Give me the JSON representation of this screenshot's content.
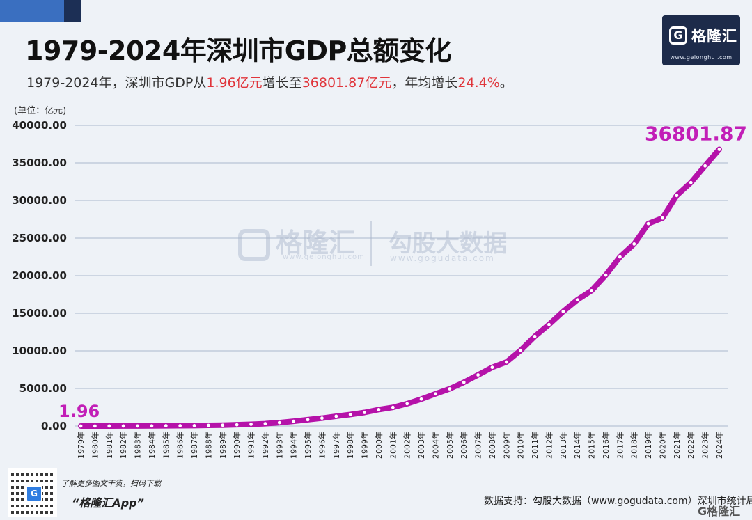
{
  "header": {
    "title": "1979-2024年深圳市GDP总额变化",
    "subtitle_parts": [
      "1979-2024年，深圳市GDP从",
      "1.96亿元",
      "增长至",
      "36801.87亿元",
      "，年均增长",
      "24.4%",
      "。"
    ]
  },
  "logo": {
    "name": "格隆汇",
    "mark": "G",
    "url": "www.gelonghui.com"
  },
  "watermark": {
    "brand1": "格隆汇",
    "brand1_url": "www.gelonghui.com",
    "brand2": "勾股大数据",
    "brand2_url": "www.gogudata.com"
  },
  "footer": {
    "qr_mark": "G",
    "tip": "了解更多图文干货，扫码下载",
    "app": "“格隆汇App”",
    "source": "数据支持：勾股大数据（www.gogudata.com）深圳市统计局",
    "corner_logo": "G格隆汇"
  },
  "colors": {
    "line": "#b512a9",
    "label": "#c21fb7",
    "accent_red": "#e0353b",
    "grid": "#aab8cc"
  },
  "chart_data": {
    "type": "line",
    "unit_label": "(单位：亿元)",
    "ylim": [
      0,
      40000
    ],
    "yticks": [
      "0.00",
      "5000.00",
      "10000.00",
      "15000.00",
      "20000.00",
      "25000.00",
      "30000.00",
      "35000.00",
      "40000.00"
    ],
    "grid": true,
    "categories": [
      "1979年",
      "1980年",
      "1981年",
      "1982年",
      "1983年",
      "1984年",
      "1985年",
      "1986年",
      "1987年",
      "1988年",
      "1989年",
      "1990年",
      "1991年",
      "1992年",
      "1993年",
      "1994年",
      "1995年",
      "1996年",
      "1997年",
      "1998年",
      "1999年",
      "2000年",
      "2001年",
      "2002年",
      "2003年",
      "2004年",
      "2005年",
      "2006年",
      "2007年",
      "2008年",
      "2009年",
      "2010年",
      "2011年",
      "2012年",
      "2013年",
      "2014年",
      "2015年",
      "2016年",
      "2017年",
      "2018年",
      "2019年",
      "2020年",
      "2021年",
      "2022年",
      "2023年",
      "2024年"
    ],
    "values": [
      1.96,
      2.7,
      5,
      8.3,
      13.1,
      23.4,
      39,
      41.7,
      55.9,
      86.9,
      115.7,
      171.7,
      236.7,
      317.3,
      453.1,
      634.7,
      842.5,
      1050.5,
      1302.3,
      1534.7,
      1804,
      2187.5,
      2482.5,
      2969.5,
      3585.7,
      4282.1,
      4951,
      5814,
      6801.6,
      7806.5,
      8514.5,
      10069,
      11922.8,
      13496.3,
      15234.2,
      16795.4,
      18014.1,
      20079.7,
      22490.1,
      24221.9,
      26927.1,
      27670.2,
      30664.9,
      32387.7,
      34606.4,
      36801.87
    ],
    "annotations": [
      {
        "category": "1979年",
        "text": "1.96"
      },
      {
        "category": "2024年",
        "text": "36801.87"
      }
    ]
  }
}
